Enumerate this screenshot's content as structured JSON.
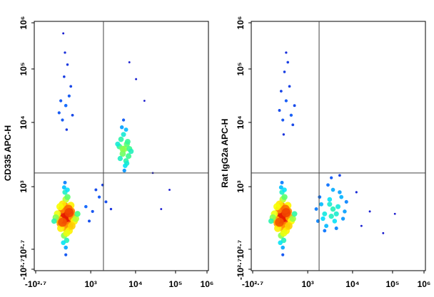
{
  "chart_data": [
    {
      "type": "scatter",
      "y_label": "CD335 APC-H",
      "xlim": [
        0,
        1024
      ],
      "ylim": [
        0,
        1024
      ],
      "xticks": [
        {
          "value": 0,
          "label": "-10²·⁷"
        },
        {
          "value": 329,
          "label": "10³"
        },
        {
          "value": 597,
          "label": "10⁴"
        },
        {
          "value": 836,
          "label": "10⁵"
        },
        {
          "value": 1024,
          "label": "10⁶"
        }
      ],
      "yticks": [
        {
          "value": 0,
          "label": "-10²·⁷"
        },
        {
          "value": 83,
          "label": "10²·⁷"
        },
        {
          "value": 343,
          "label": "10³"
        },
        {
          "value": 610,
          "label": "10⁴"
        },
        {
          "value": 832,
          "label": "10⁵"
        },
        {
          "value": 1024,
          "label": "10⁶"
        }
      ],
      "gates": {
        "x": 405,
        "y": 400
      },
      "colormap": [
        "#0000c8",
        "#0060ff",
        "#00e0ff",
        "#40ff80",
        "#ffff00",
        "#ff8000",
        "#e00000"
      ],
      "x": [
        180,
        170,
        190,
        160,
        200,
        150,
        210,
        175,
        185,
        165,
        195,
        140,
        220,
        180,
        170,
        190,
        130,
        230,
        185,
        175,
        160,
        200,
        150,
        210,
        120,
        240,
        180,
        190,
        170,
        165,
        195,
        145,
        215,
        110,
        250,
        180,
        175,
        185,
        160,
        200,
        530,
        520,
        545,
        510,
        555,
        500,
        540,
        525,
        560,
        535,
        515,
        550,
        505,
        540,
        530,
        520,
        570,
        490,
        545,
        525,
        300,
        340,
        380,
        420,
        360,
        450,
        320,
        400,
        160,
        180,
        200,
        140,
        210,
        170,
        190,
        150,
        175,
        220,
        185,
        165,
        560,
        600,
        650,
        700,
        800,
        750
      ],
      "y": [
        215,
        230,
        200,
        250,
        180,
        190,
        240,
        260,
        170,
        210,
        225,
        205,
        215,
        290,
        140,
        300,
        230,
        200,
        120,
        320,
        270,
        160,
        170,
        265,
        215,
        210,
        90,
        330,
        340,
        110,
        250,
        260,
        180,
        200,
        230,
        60,
        360,
        150,
        195,
        235,
        500,
        480,
        520,
        540,
        470,
        510,
        450,
        560,
        500,
        430,
        590,
        530,
        460,
        580,
        410,
        500,
        490,
        520,
        440,
        620,
        260,
        240,
        300,
        280,
        330,
        250,
        200,
        350,
        620,
        680,
        720,
        650,
        760,
        800,
        850,
        700,
        900,
        640,
        580,
        980,
        860,
        790,
        700,
        400,
        330,
        250
      ]
    },
    {
      "type": "scatter",
      "y_label": "Rat IgG2a APC-H",
      "xlim": [
        0,
        1024
      ],
      "ylim": [
        0,
        1024
      ],
      "xticks": [
        {
          "value": 0,
          "label": "-10²·⁷"
        },
        {
          "value": 329,
          "label": "10³"
        },
        {
          "value": 597,
          "label": "10⁴"
        },
        {
          "value": 836,
          "label": "10⁵"
        },
        {
          "value": 1024,
          "label": "10⁶"
        }
      ],
      "yticks": [
        {
          "value": 0,
          "label": "-10²·⁷"
        },
        {
          "value": 83,
          "label": "10²·⁷"
        },
        {
          "value": 343,
          "label": "10³"
        },
        {
          "value": 610,
          "label": "10⁴"
        },
        {
          "value": 832,
          "label": "10⁵"
        },
        {
          "value": 1024,
          "label": "10⁶"
        }
      ],
      "gates": {
        "x": 397,
        "y": 400
      },
      "colormap": [
        "#0000c8",
        "#0060ff",
        "#00e0ff",
        "#40ff80",
        "#ffff00",
        "#ff8000",
        "#e00000"
      ],
      "x": [
        180,
        170,
        190,
        160,
        200,
        150,
        210,
        175,
        185,
        165,
        195,
        140,
        220,
        180,
        170,
        190,
        130,
        230,
        185,
        175,
        160,
        200,
        150,
        210,
        120,
        240,
        180,
        190,
        170,
        165,
        195,
        145,
        215,
        110,
        250,
        180,
        175,
        185,
        160,
        200,
        380,
        420,
        460,
        500,
        530,
        440,
        480,
        510,
        400,
        470,
        550,
        490,
        430,
        520,
        460,
        410,
        500,
        540,
        450,
        480,
        560,
        390,
        470,
        520,
        430,
        180,
        200,
        160,
        220,
        190,
        240,
        210,
        170,
        250,
        185,
        230,
        200,
        650,
        700,
        780,
        620,
        850
      ],
      "y": [
        215,
        230,
        200,
        250,
        180,
        190,
        240,
        260,
        170,
        210,
        225,
        205,
        215,
        290,
        140,
        300,
        230,
        200,
        120,
        320,
        270,
        160,
        170,
        265,
        215,
        210,
        90,
        330,
        340,
        110,
        250,
        260,
        180,
        200,
        230,
        60,
        360,
        150,
        195,
        235,
        250,
        210,
        270,
        230,
        300,
        180,
        330,
        260,
        300,
        220,
        240,
        200,
        160,
        320,
        290,
        270,
        170,
        210,
        350,
        250,
        280,
        200,
        380,
        390,
        230,
        620,
        700,
        660,
        760,
        820,
        600,
        860,
        740,
        680,
        560,
        640,
        900,
        180,
        240,
        150,
        320,
        230
      ]
    }
  ]
}
